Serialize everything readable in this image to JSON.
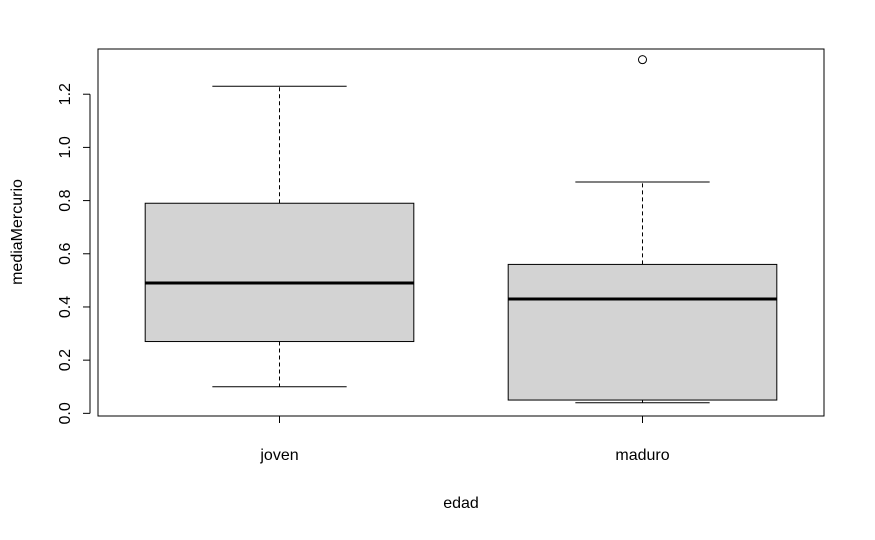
{
  "chart_data": {
    "type": "boxplot",
    "title": "",
    "xlabel": "edad",
    "ylabel": "mediaMercurio",
    "ylim": [
      -0.01,
      1.37
    ],
    "yticks": [
      0.0,
      0.2,
      0.4,
      0.6,
      0.8,
      1.0,
      1.2
    ],
    "ytick_labels": [
      "0.0",
      "0.2",
      "0.4",
      "0.6",
      "0.8",
      "1.0",
      "1.2"
    ],
    "categories": [
      "joven",
      "maduro"
    ],
    "boxes": [
      {
        "category": "joven",
        "whisker_low": 0.1,
        "q1": 0.27,
        "median": 0.49,
        "q3": 0.79,
        "whisker_high": 1.23,
        "outliers": []
      },
      {
        "category": "maduro",
        "whisker_low": 0.04,
        "q1": 0.05,
        "median": 0.43,
        "q3": 0.56,
        "whisker_high": 0.87,
        "outliers": [
          1.33
        ]
      }
    ],
    "box_fill": "#d3d3d3",
    "line_color": "#000000",
    "grid": false,
    "legend": "none"
  }
}
